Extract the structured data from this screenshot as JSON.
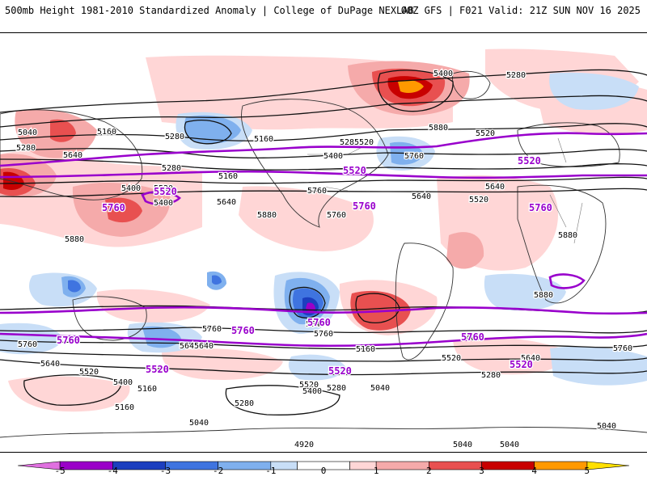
{
  "header": {
    "left": "500mb Height 1981-2010 Standardized Anomaly | College of DuPage NEXLAB",
    "right": "00Z GFS | F021 Valid: 21Z SUN NOV 16 2025"
  },
  "colors": {
    "bins": [
      {
        "from": -5,
        "to": -4,
        "color": "#9a00c8"
      },
      {
        "from": -4,
        "to": -3,
        "color": "#1c3fbf"
      },
      {
        "from": -3,
        "to": -2,
        "color": "#3f74e0"
      },
      {
        "from": -2,
        "to": -1,
        "color": "#7fb0ee"
      },
      {
        "from": -1,
        "to": -0.5,
        "color": "#c8def7"
      },
      {
        "from": 0.5,
        "to": 1,
        "color": "#ffd6d6"
      },
      {
        "from": 1,
        "to": 2,
        "color": "#f5aaaa"
      },
      {
        "from": 2,
        "to": 3,
        "color": "#e85050"
      },
      {
        "from": 3,
        "to": 4,
        "color": "#c80000"
      },
      {
        "from": 4,
        "to": 5,
        "color": "#ff9900"
      }
    ],
    "below_min": "#e070e0",
    "above_max": "#ffe000",
    "highlight_contour": "#9900cc"
  },
  "colorbar": {
    "ticks": [
      "-5",
      "-4",
      "-3",
      "-2",
      "-1",
      "0",
      "1",
      "2",
      "3",
      "4",
      "5"
    ]
  },
  "contours": {
    "regular": [
      "5040",
      "5160",
      "5280",
      "5400",
      "5520",
      "5640",
      "5760",
      "5880",
      "4920"
    ],
    "highlighted": [
      "5520",
      "5760"
    ]
  },
  "labels": [
    {
      "text": "5400",
      "style": "black"
    },
    {
      "text": "5280",
      "style": "black"
    },
    {
      "text": "5520",
      "style": "black"
    },
    {
      "text": "5040",
      "style": "black"
    },
    {
      "text": "5160",
      "style": "black"
    },
    {
      "text": "5280",
      "style": "black"
    },
    {
      "text": "5640",
      "style": "black"
    },
    {
      "text": "5280",
      "style": "black"
    },
    {
      "text": "5160",
      "style": "black"
    },
    {
      "text": "5280",
      "style": "black"
    },
    {
      "text": "5400",
      "style": "black"
    },
    {
      "text": "5160",
      "style": "black"
    },
    {
      "text": "5280",
      "style": "black"
    },
    {
      "text": "5520",
      "style": "black"
    },
    {
      "text": "5400",
      "style": "black"
    },
    {
      "text": "5520",
      "style": "black"
    },
    {
      "text": "5760",
      "style": "black"
    },
    {
      "text": "5640",
      "style": "black"
    },
    {
      "text": "5880",
      "style": "black"
    },
    {
      "text": "5760",
      "style": "black"
    },
    {
      "text": "5400",
      "style": "black"
    },
    {
      "text": "5640",
      "style": "black"
    },
    {
      "text": "5520",
      "style": "black"
    },
    {
      "text": "5760",
      "style": "black"
    },
    {
      "text": "5640",
      "style": "black"
    },
    {
      "text": "5880",
      "style": "black"
    },
    {
      "text": "5880",
      "style": "black"
    },
    {
      "text": "5880",
      "style": "black"
    },
    {
      "text": "5880",
      "style": "black"
    },
    {
      "text": "5760",
      "style": "black"
    },
    {
      "text": "5640",
      "style": "black"
    },
    {
      "text": "5760",
      "style": "black"
    },
    {
      "text": "5640",
      "style": "black"
    },
    {
      "text": "5520",
      "style": "black"
    },
    {
      "text": "5400",
      "style": "black"
    },
    {
      "text": "5280",
      "style": "black"
    },
    {
      "text": "5160",
      "style": "black"
    },
    {
      "text": "5520",
      "style": "black"
    },
    {
      "text": "5400",
      "style": "black"
    },
    {
      "text": "5280",
      "style": "black"
    },
    {
      "text": "5040",
      "style": "black"
    },
    {
      "text": "5160",
      "style": "black"
    },
    {
      "text": "5160",
      "style": "black"
    },
    {
      "text": "5040",
      "style": "black"
    },
    {
      "text": "5040",
      "style": "black"
    },
    {
      "text": "4920",
      "style": "black"
    },
    {
      "text": "5040",
      "style": "black"
    },
    {
      "text": "5160",
      "style": "black"
    },
    {
      "text": "5040",
      "style": "black"
    },
    {
      "text": "5520",
      "style": "black"
    },
    {
      "text": "5400",
      "style": "black"
    },
    {
      "text": "5280",
      "style": "black"
    },
    {
      "text": "5760",
      "style": "black"
    },
    {
      "text": "5640",
      "style": "black"
    },
    {
      "text": "5640",
      "style": "black"
    },
    {
      "text": "5760",
      "style": "black"
    },
    {
      "text": "5640",
      "style": "black"
    },
    {
      "text": "5520",
      "style": "purple"
    },
    {
      "text": "5520",
      "style": "purple"
    },
    {
      "text": "5520",
      "style": "purple"
    },
    {
      "text": "5760",
      "style": "purple"
    },
    {
      "text": "5760",
      "style": "purple"
    },
    {
      "text": "5760",
      "style": "purple"
    },
    {
      "text": "5760",
      "style": "purple"
    },
    {
      "text": "5760",
      "style": "purple"
    },
    {
      "text": "5520",
      "style": "purple"
    },
    {
      "text": "5520",
      "style": "purple"
    },
    {
      "text": "5520",
      "style": "purple"
    },
    {
      "text": "5760",
      "style": "purple"
    },
    {
      "text": "5760",
      "style": "purple"
    }
  ]
}
